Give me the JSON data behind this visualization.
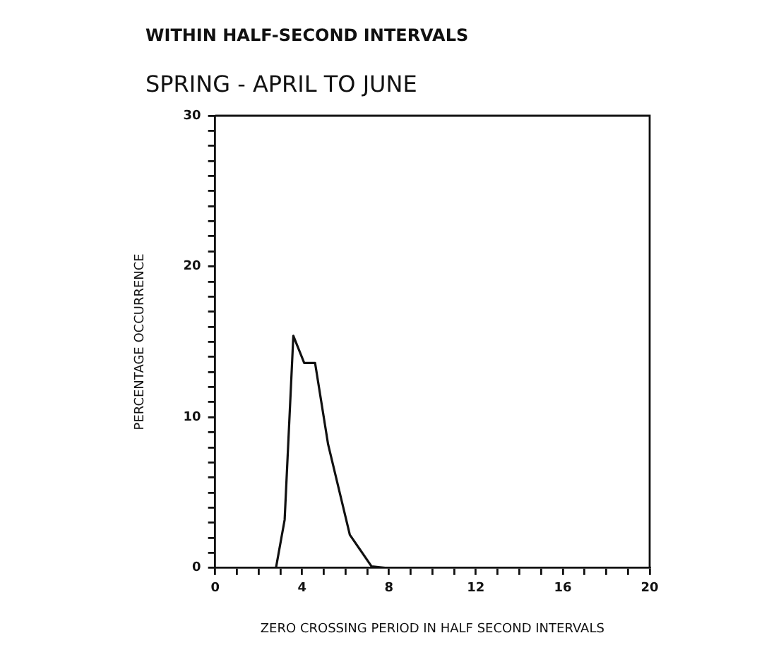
{
  "chart_data": {
    "type": "line",
    "title": "WITHIN HALF-SECOND INTERVALS",
    "subtitle": "SPRING - APRIL TO JUNE",
    "xlabel": "ZERO CROSSING PERIOD IN HALF SECOND INTERVALS",
    "ylabel": "PERCENTAGE OCCURRENCE",
    "series": [
      {
        "color": "#111111",
        "x": [
          2.8,
          3.2,
          3.6,
          4.1,
          4.6,
          5.2,
          6.2,
          7.2,
          7.9
        ],
        "values": [
          0,
          3.2,
          15.4,
          13.6,
          13.6,
          8.2,
          2.2,
          0.1,
          0
        ]
      }
    ],
    "xlim": [
      0,
      20
    ],
    "ylim": [
      0,
      30
    ],
    "xticks": [
      0,
      {
        "value": 1,
        "label": null
      },
      {
        "value": 2,
        "label": null
      },
      {
        "value": 3,
        "label": null
      },
      4,
      {
        "value": 5,
        "label": null
      },
      {
        "value": 6,
        "label": null
      },
      {
        "value": 7,
        "label": null
      },
      8,
      {
        "value": 9,
        "label": null
      },
      {
        "value": 10,
        "label": null
      },
      {
        "value": 11,
        "label": null
      },
      12,
      {
        "value": 13,
        "label": null
      },
      {
        "value": 14,
        "label": null
      },
      {
        "value": 15,
        "label": null
      },
      16,
      {
        "value": 17,
        "label": null
      },
      {
        "value": 18,
        "label": null
      },
      {
        "value": 19,
        "label": null
      },
      20
    ],
    "yticks": [
      0,
      {
        "value": 1,
        "label": null
      },
      {
        "value": 2,
        "label": null
      },
      {
        "value": 3,
        "label": null
      },
      {
        "value": 4,
        "label": null
      },
      {
        "value": 5,
        "label": null
      },
      {
        "value": 6,
        "label": null
      },
      {
        "value": 7,
        "label": null
      },
      {
        "value": 8,
        "label": null
      },
      {
        "value": 9,
        "label": null
      },
      10,
      {
        "value": 11,
        "label": null
      },
      {
        "value": 12,
        "label": null
      },
      {
        "value": 13,
        "label": null
      },
      {
        "value": 14,
        "label": null
      },
      {
        "value": 15,
        "label": null
      },
      {
        "value": 16,
        "label": null
      },
      {
        "value": 17,
        "label": null
      },
      {
        "value": 18,
        "label": null
      },
      {
        "value": 19,
        "label": null
      },
      20,
      {
        "value": 21,
        "label": null
      },
      {
        "value": 22,
        "label": null
      },
      {
        "value": 23,
        "label": null
      },
      {
        "value": 24,
        "label": null
      },
      {
        "value": 25,
        "label": null
      },
      {
        "value": 26,
        "label": null
      },
      {
        "value": 27,
        "label": null
      },
      {
        "value": 28,
        "label": null
      },
      {
        "value": 29,
        "label": null
      },
      30
    ],
    "grid": false,
    "legend": false,
    "marker": "none",
    "line_style": "solid"
  }
}
